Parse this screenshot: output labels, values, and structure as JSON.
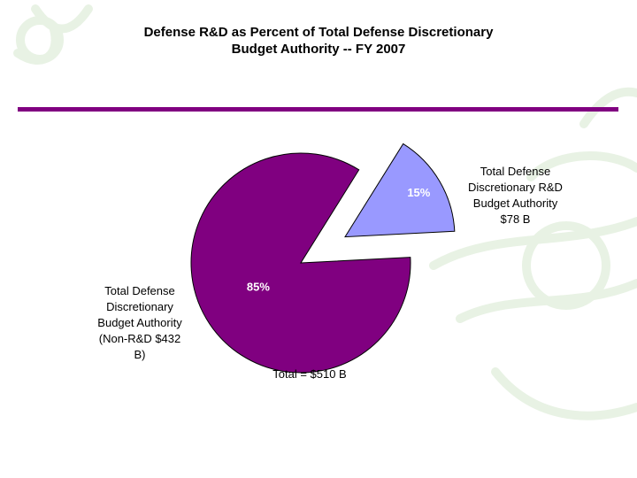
{
  "title_lines": [
    "Defense R&D as Percent of Total Defense Discretionary",
    "Budget Authority -- FY 2007"
  ],
  "colors": {
    "accent_rule": "#800080",
    "decor": "#e8f2e4"
  },
  "chart_data": {
    "type": "pie",
    "title": "Defense R&D as Percent of Total Defense Discretionary Budget Authority -- FY 2007",
    "slices": [
      {
        "label_lines": [
          "Total Defense",
          "Discretionary R&D",
          "Budget Authority",
          "$78 B"
        ],
        "value": 78,
        "percent_label": "15%",
        "color": "#9999ff",
        "exploded": true
      },
      {
        "label_lines": [
          "Total Defense",
          "Discretionary",
          "Budget Authority",
          "(Non-R&D $432",
          "B)"
        ],
        "value": 432,
        "percent_label": "85%",
        "color": "#800080",
        "exploded": false
      }
    ],
    "start_angle_deg": 32,
    "direction": "clockwise",
    "total_label": "Total = $510 B"
  }
}
